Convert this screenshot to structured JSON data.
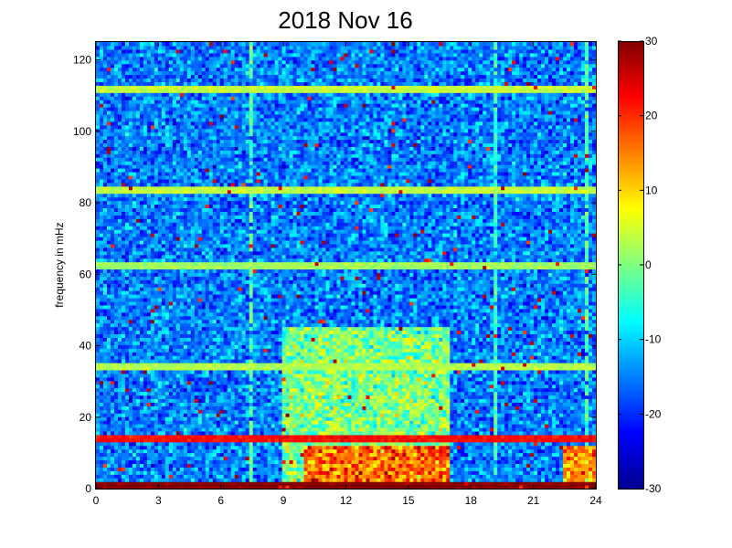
{
  "chart_data": {
    "type": "heatmap",
    "title": "2018 Nov 16",
    "xlabel": "",
    "ylabel": "frequency in mHz",
    "x_unit": "hours",
    "xlim": [
      0,
      24
    ],
    "ylim": [
      0,
      125
    ],
    "x_ticks": [
      0,
      3,
      6,
      9,
      12,
      15,
      18,
      21,
      24
    ],
    "y_ticks": [
      0,
      20,
      40,
      60,
      80,
      100,
      120
    ],
    "colorbar": {
      "colormap": "jet",
      "range": [
        -30,
        30
      ],
      "ticks": [
        -30,
        -20,
        -10,
        0,
        10,
        20,
        30
      ]
    },
    "grid": false,
    "background_level": -15,
    "horizontal_bands": [
      {
        "freq": 1,
        "value": 30
      },
      {
        "freq": 14.5,
        "value": 22
      },
      {
        "freq": 34.5,
        "value": 3
      },
      {
        "freq": 62.5,
        "value": 2
      },
      {
        "freq": 83.5,
        "value": 4
      },
      {
        "freq": 111.5,
        "value": 4
      }
    ],
    "vertical_streaks": [
      {
        "time": 7.5,
        "value": -2
      },
      {
        "time": 19.2,
        "value": -4
      },
      {
        "time": 23.6,
        "value": -2
      }
    ],
    "enhanced_regions": [
      {
        "time_range": [
          9,
          17
        ],
        "freq_range": [
          0,
          45
        ],
        "value": 0
      },
      {
        "time_range": [
          10,
          17
        ],
        "freq_range": [
          2,
          12
        ],
        "value": 16
      },
      {
        "time_range": [
          22.5,
          24
        ],
        "freq_range": [
          2,
          12
        ],
        "value": 14
      }
    ]
  }
}
